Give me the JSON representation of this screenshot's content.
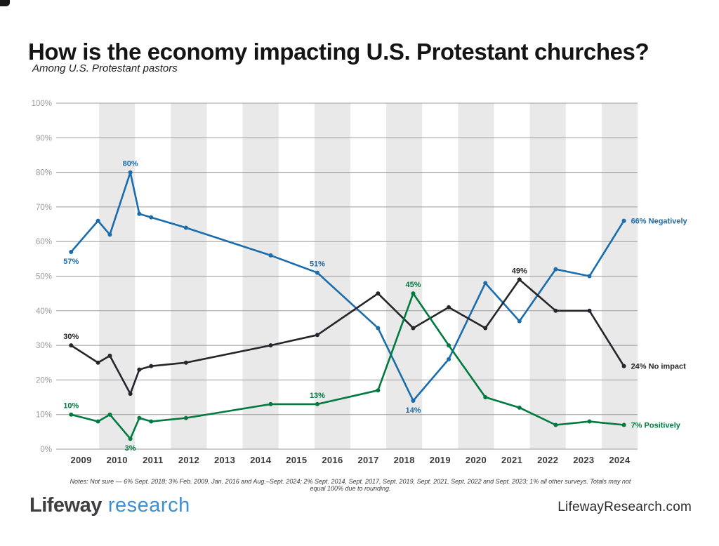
{
  "page": {
    "notes": "Notes: Not sure — 6% Sept. 2018; 3% Feb. 2009, Jan. 2016 and Aug.–Sept. 2024; 2% Sept. 2014, Sept. 2017, Sept. 2019, Sept. 2021, Sept. 2022 and Sept. 2023; 1% all other surveys. Totals may not equal 100% due to rounding.",
    "footer": {
      "logo_primary": "Lifeway",
      "logo_secondary": "research",
      "website": "LifewayResearch.com"
    }
  },
  "colors": {
    "negatively": "#1a6cac",
    "no_impact": "#25252b",
    "positively": "#007a3e",
    "band": "#e9e9e9",
    "gridline": "#9b9b9b",
    "logo_blue": "#3e8ed2"
  },
  "chart_data": {
    "type": "line",
    "title": "How is the economy impacting U.S. Protestant churches?",
    "subtitle": "Among U.S. Protestant pastors",
    "xlabel": "",
    "ylabel": "",
    "ylim": [
      0,
      100
    ],
    "y_tick_step": 10,
    "y_tick_suffix": "%",
    "x_range": [
      2009,
      2025
    ],
    "x_ticks": [
      2009,
      2010,
      2011,
      2012,
      2013,
      2014,
      2015,
      2016,
      2017,
      2018,
      2019,
      2020,
      2021,
      2022,
      2023,
      2024
    ],
    "band_years_shaded": [
      2010,
      2012,
      2014,
      2016,
      2018,
      2020,
      2022,
      2024
    ],
    "grid": true,
    "legend_position": "end-of-line labels",
    "x": [
      2009.22,
      2009.97,
      2010.3,
      2010.87,
      2011.12,
      2011.45,
      2012.42,
      2014.78,
      2016.08,
      2017.77,
      2018.75,
      2019.74,
      2020.76,
      2021.71,
      2022.72,
      2023.66,
      2024.62
    ],
    "series": [
      {
        "name": "Negatively",
        "color": "#1a6cac",
        "values": [
          57,
          66,
          62,
          80,
          68,
          67,
          64,
          56,
          51,
          35,
          14,
          26,
          48,
          37,
          52,
          50,
          66
        ]
      },
      {
        "name": "No impact",
        "color": "#25252b",
        "values": [
          30,
          25,
          27,
          16,
          23,
          24,
          25,
          30,
          33,
          45,
          35,
          41,
          35,
          49,
          40,
          40,
          24
        ]
      },
      {
        "name": "Positively",
        "color": "#007a3e",
        "values": [
          10,
          8,
          10,
          3,
          9,
          8,
          9,
          13,
          13,
          17,
          45,
          30,
          15,
          12,
          7,
          8,
          7
        ]
      }
    ],
    "annotations": [
      {
        "series": 0,
        "point": 0,
        "text": "57%",
        "placement": "below"
      },
      {
        "series": 0,
        "point": 3,
        "text": "80%",
        "placement": "above"
      },
      {
        "series": 0,
        "point": 8,
        "text": "51%",
        "placement": "above"
      },
      {
        "series": 0,
        "point": 10,
        "text": "14%",
        "placement": "below"
      },
      {
        "series": 0,
        "point": 16,
        "text": "66% Negatively",
        "placement": "right"
      },
      {
        "series": 1,
        "point": 0,
        "text": "30%",
        "placement": "above"
      },
      {
        "series": 1,
        "point": 13,
        "text": "49%",
        "placement": "above"
      },
      {
        "series": 1,
        "point": 16,
        "text": "24% No impact",
        "placement": "right"
      },
      {
        "series": 2,
        "point": 0,
        "text": "10%",
        "placement": "above"
      },
      {
        "series": 2,
        "point": 3,
        "text": "3%",
        "placement": "below"
      },
      {
        "series": 2,
        "point": 8,
        "text": "13%",
        "placement": "above"
      },
      {
        "series": 2,
        "point": 10,
        "text": "45%",
        "placement": "above"
      },
      {
        "series": 2,
        "point": 16,
        "text": "7% Positively",
        "placement": "right"
      }
    ]
  }
}
